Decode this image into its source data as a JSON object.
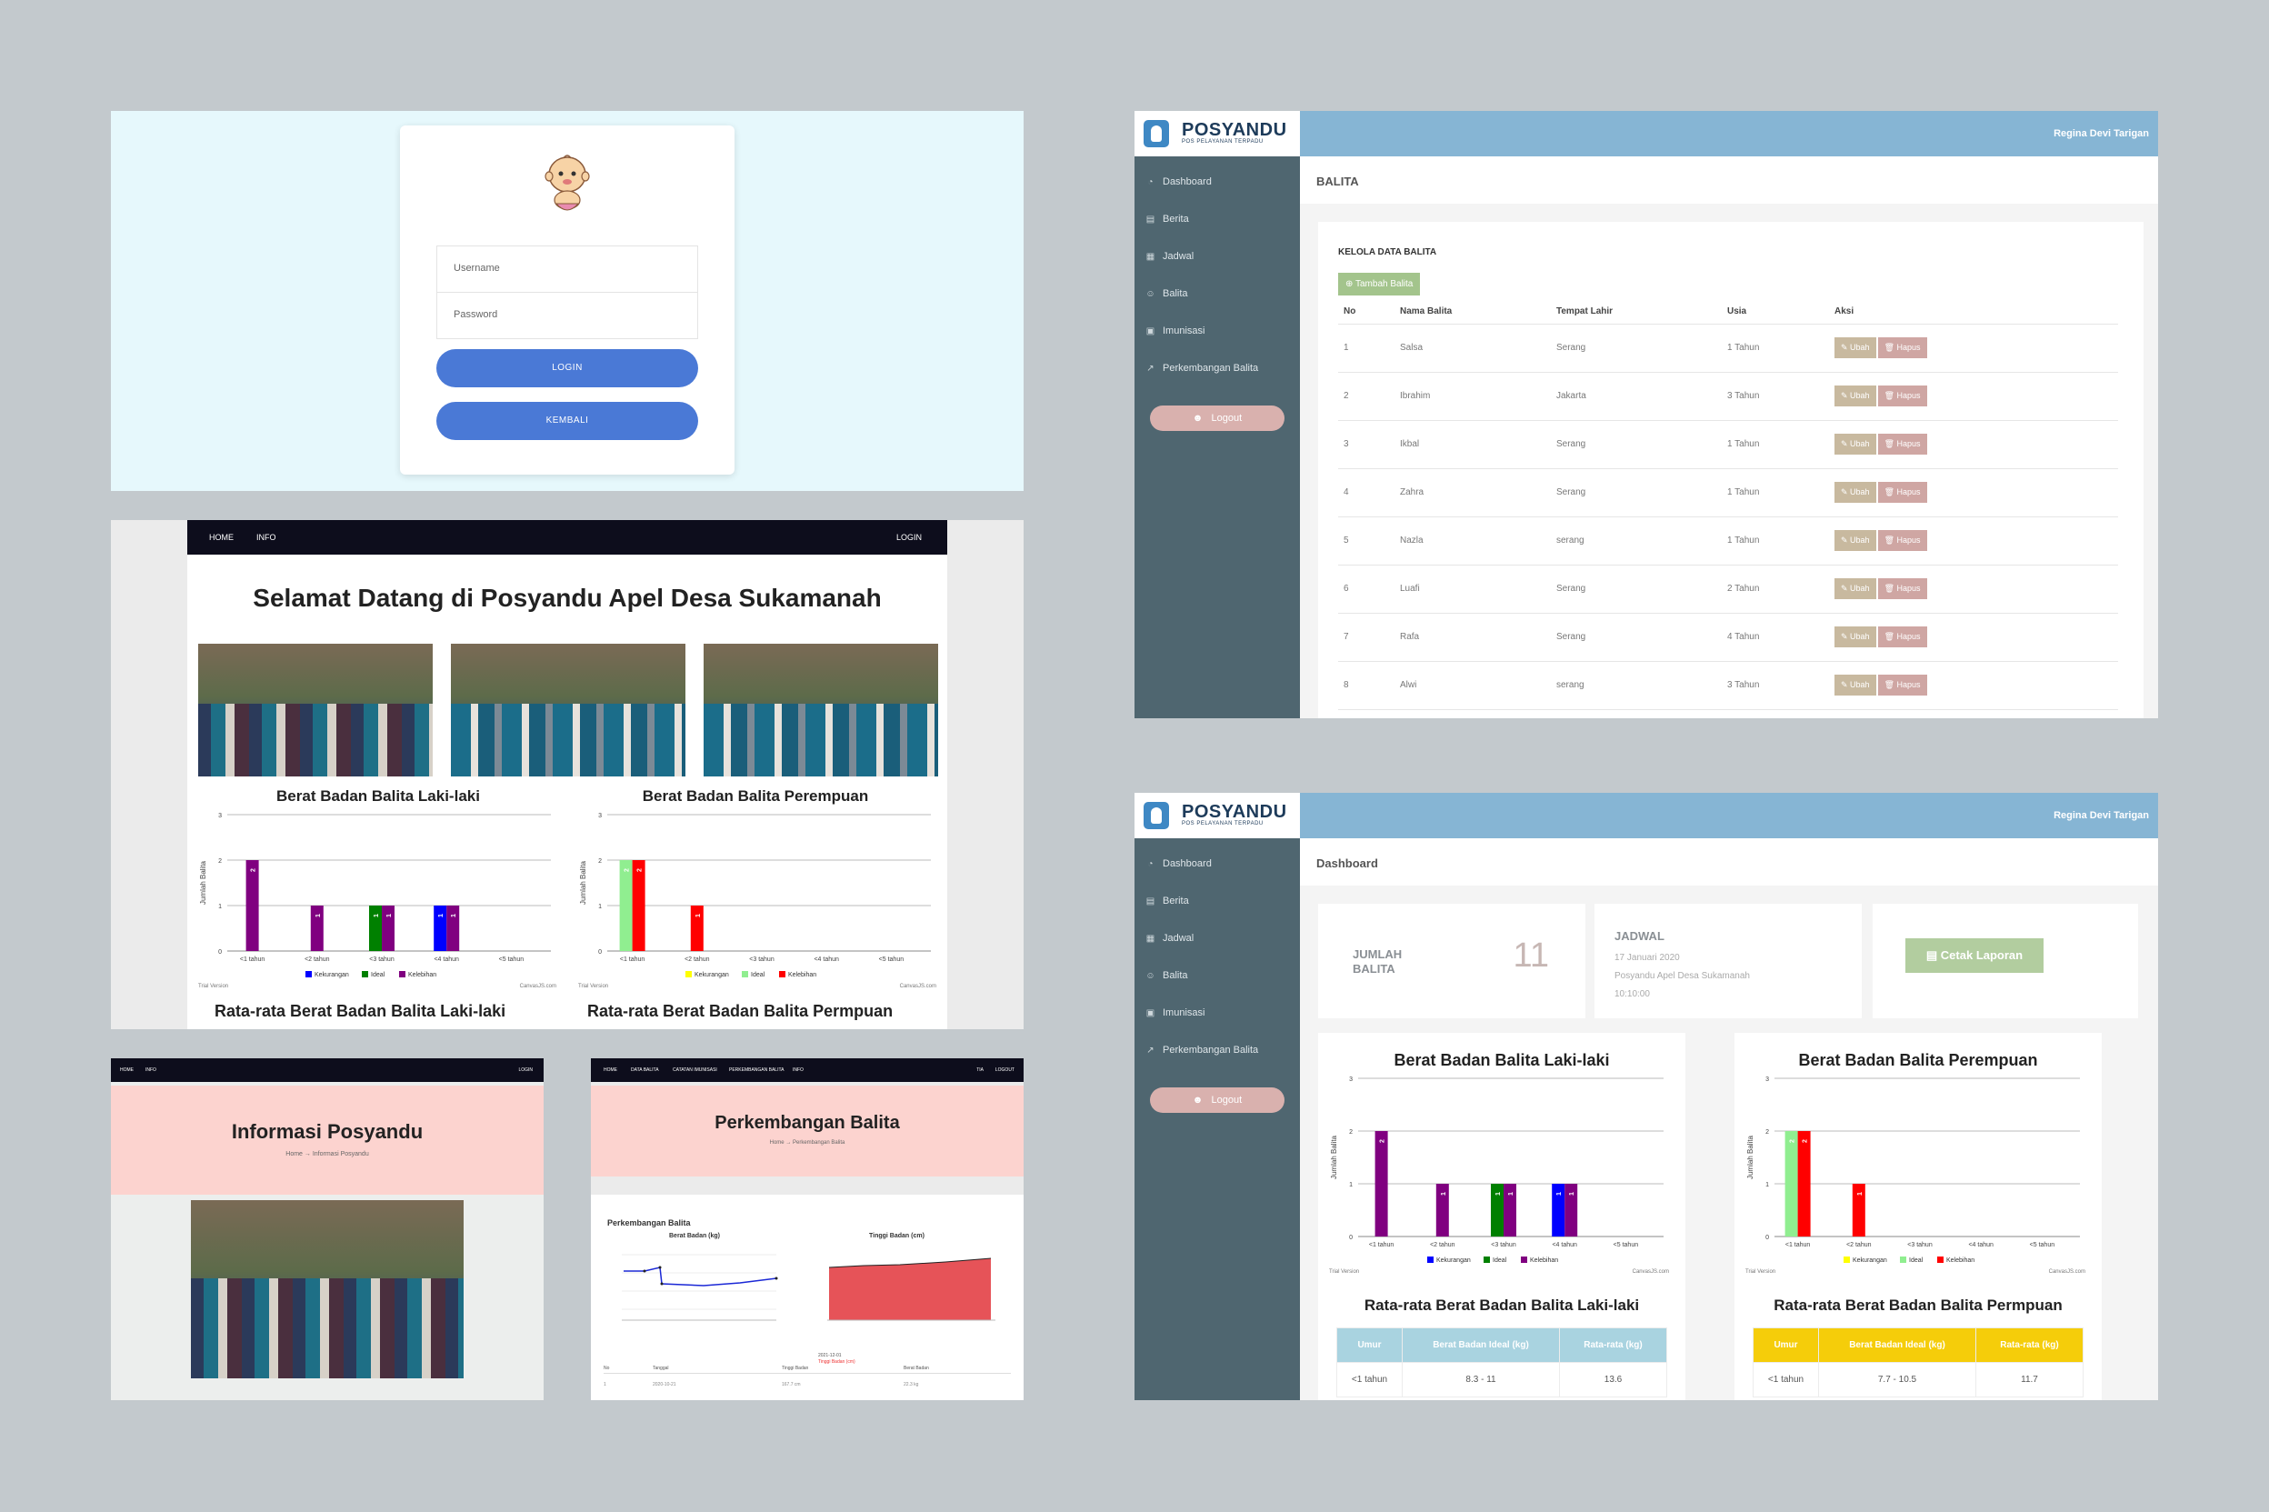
{
  "login": {
    "username_placeholder": "Username",
    "password_placeholder": "Password",
    "login_button": "LOGIN",
    "back_button": "KEMBALI"
  },
  "home": {
    "nav": {
      "home": "HOME",
      "info": "INFO",
      "login": "LOGIN"
    },
    "title": "Selamat Datang di Posyandu Apel Desa Sukamanah",
    "avg_title_male": "Rata-rata Berat Badan Balita Laki-laki",
    "avg_title_female": "Rata-rata Berat Badan Balita Permpuan"
  },
  "info_page": {
    "nav": {
      "home": "HOME",
      "info": "INFO",
      "login": "LOGIN"
    },
    "title": "Informasi Posyandu",
    "breadcrumb": "Home  →  Informasi Posyandu"
  },
  "perk_page": {
    "nav": [
      "HOME",
      "DATA BALITA",
      "CATATAN IMUNISASI",
      "PERKEMBANGAN BALITA",
      "INFO"
    ],
    "nav_right": [
      "TIA",
      "LOGOUT"
    ],
    "title": "Perkembangan Balita",
    "breadcrumb": "Home  →  Perkembangan Balita",
    "section_title": "Perkembangan Balita",
    "chart1_title": "Berat Badan (kg)",
    "chart2_title": "Tinggi Badan (cm)",
    "table_headers": [
      "No",
      "Tanggal",
      "Tinggi Badan",
      "Berat Badan"
    ],
    "table_row": [
      "1",
      "2020-10-21",
      "167.7 cm",
      "22.3 kg"
    ],
    "chart2_tooltip": [
      "2021-12-01",
      "Tinggi Badan (cm)"
    ]
  },
  "admin": {
    "brand": "POSYANDU",
    "brand_sub": "POS PELAYANAN TERPADU",
    "user": "Regina Devi Tarigan",
    "sidebar": [
      {
        "label": "Dashboard",
        "icon": "dashboard-icon",
        "glyph": "◔"
      },
      {
        "label": "Berita",
        "icon": "news-icon",
        "glyph": "▤"
      },
      {
        "label": "Jadwal",
        "icon": "table-icon",
        "glyph": "▦"
      },
      {
        "label": "Balita",
        "icon": "user-icon",
        "glyph": "☺"
      },
      {
        "label": "Imunisasi",
        "icon": "camera-icon",
        "glyph": "▣"
      },
      {
        "label": "Perkembangan Balita",
        "icon": "chart-line-icon",
        "glyph": "↗"
      }
    ],
    "logout": "Logout"
  },
  "balita_page": {
    "header": "BALITA",
    "card_title": "KELOLA DATA BALITA",
    "add_button": "Tambah Balita",
    "columns": [
      "No",
      "Nama Balita",
      "Tempat Lahir",
      "Usia",
      "Aksi"
    ],
    "rows": [
      [
        "1",
        "Salsa",
        "Serang",
        "1 Tahun"
      ],
      [
        "2",
        "Ibrahim",
        "Jakarta",
        "3 Tahun"
      ],
      [
        "3",
        "Ikbal",
        "Serang",
        "1 Tahun"
      ],
      [
        "4",
        "Zahra",
        "Serang",
        "1 Tahun"
      ],
      [
        "5",
        "Nazla",
        "serang",
        "1 Tahun"
      ],
      [
        "6",
        "Luafi",
        "Serang",
        "2 Tahun"
      ],
      [
        "7",
        "Rafa",
        "Serang",
        "4 Tahun"
      ],
      [
        "8",
        "Alwi",
        "serang",
        "3 Tahun"
      ]
    ],
    "edit_label": "Ubah",
    "delete_label": "Hapus"
  },
  "dash_page": {
    "header": "Dashboard",
    "jumlah_label": "JUMLAH BALITA",
    "jumlah_value": "11",
    "jadwal_label": "JADWAL",
    "jadwal_date": "17 Januari 2020",
    "jadwal_place": "Posyandu Apel Desa Sukamanah",
    "jadwal_time": "10:10:00",
    "cetak_button": "Cetak Laporan",
    "avg_title_male": "Rata-rata Berat Badan Balita Laki-laki",
    "avg_title_female": "Rata-rata Berat Badan Balita Permpuan",
    "avg_headers": [
      "Umur",
      "Berat Badan Ideal (kg)",
      "Rata-rata (kg)"
    ],
    "avg_male_row": [
      "<1 tahun",
      "8.3 - 11",
      "13.6"
    ],
    "avg_female_row": [
      "<1 tahun",
      "7.7 - 10.5",
      "11.7"
    ],
    "male_header_color": "#a9d3e0",
    "female_header_color": "#f5cd0a"
  },
  "chart_data": [
    {
      "type": "bar",
      "title": "Berat Badan Balita Laki-laki",
      "ylabel": "Jumlah Balita",
      "categories": [
        "<1 tahun",
        "<2 tahun",
        "<3 tahun",
        "<4 tahun",
        "<5 tahun"
      ],
      "ylim": [
        0,
        3
      ],
      "series": [
        {
          "name": "Kekurangan",
          "color": "#0000ff",
          "values": [
            0,
            0,
            0,
            1,
            0
          ]
        },
        {
          "name": "Ideal",
          "color": "#008000",
          "values": [
            0,
            0,
            1,
            0,
            0
          ]
        },
        {
          "name": "Kelebihan",
          "color": "#800080",
          "values": [
            2,
            1,
            1,
            1,
            0
          ]
        }
      ],
      "footer_left": "Trial Version",
      "footer_right": "CanvasJS.com"
    },
    {
      "type": "bar",
      "title": "Berat Badan Balita Perempuan",
      "ylabel": "Jumlah Balita",
      "categories": [
        "<1 tahun",
        "<2 tahun",
        "<3 tahun",
        "<4 tahun",
        "<5 tahun"
      ],
      "ylim": [
        0,
        3
      ],
      "series": [
        {
          "name": "Kekurangan",
          "color": "#ffff00",
          "values": [
            0,
            0,
            0,
            0,
            0
          ]
        },
        {
          "name": "Ideal",
          "color": "#90ee90",
          "values": [
            2,
            0,
            0,
            0,
            0
          ]
        },
        {
          "name": "Kelebihan",
          "color": "#ff0000",
          "values": [
            2,
            1,
            0,
            0,
            0
          ]
        }
      ],
      "footer_left": "Trial Version",
      "footer_right": "CanvasJS.com"
    }
  ]
}
